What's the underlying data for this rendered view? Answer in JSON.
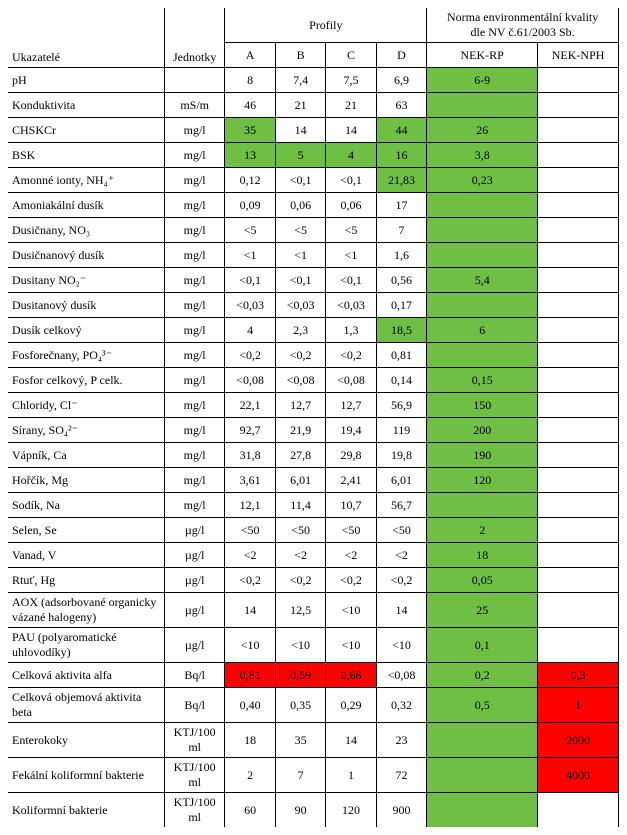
{
  "headers": {
    "ukazatele": "Ukazatelé",
    "jednotky": "Jednotky",
    "profily": "Profily",
    "norma_line1": "Norma environmentální kvality",
    "norma_line2": "dle NV č.61/2003 Sb.",
    "A": "A",
    "B": "B",
    "C": "C",
    "D": "D",
    "nekrp": "NEK-RP",
    "neknph": "NEK-NPH"
  },
  "rows": [
    {
      "name": "pH",
      "unit": "",
      "A": "8",
      "B": "7,4",
      "C": "7,5",
      "D": "6,9",
      "rp": "6-9",
      "nph": "",
      "hl": {
        "rp": "green"
      }
    },
    {
      "name": "Konduktivita",
      "unit": "mS/m",
      "A": "46",
      "B": "21",
      "C": "21",
      "D": "63",
      "rp": "",
      "nph": "",
      "hl": {
        "rp": "green"
      }
    },
    {
      "name": "CHSKCr",
      "unit": "mg/l",
      "A": "35",
      "B": "14",
      "C": "14",
      "D": "44",
      "rp": "26",
      "nph": "",
      "hl": {
        "A": "green",
        "D": "green",
        "rp": "green"
      }
    },
    {
      "name": "BSK",
      "unit": "mg/l",
      "A": "13",
      "B": "5",
      "C": "4",
      "D": "16",
      "rp": "3,8",
      "nph": "",
      "hl": {
        "A": "green",
        "B": "green",
        "C": "green",
        "D": "green",
        "rp": "green"
      }
    },
    {
      "name": "Amonné ionty, NH₄⁺",
      "unit": "mg/l",
      "A": "0,12",
      "B": "<0,1",
      "C": "<0,1",
      "D": "21,83",
      "rp": "0,23",
      "nph": "",
      "hl": {
        "D": "green",
        "rp": "green"
      }
    },
    {
      "name": "Amoniakální dusík",
      "unit": "mg/l",
      "A": "0,09",
      "B": "0,06",
      "C": "0,06",
      "D": "17",
      "rp": "",
      "nph": "",
      "hl": {
        "rp": "green"
      }
    },
    {
      "name": "Dusičnany, NO₃",
      "unit": "mg/l",
      "A": "<5",
      "B": "<5",
      "C": "<5",
      "D": "7",
      "rp": "",
      "nph": "",
      "hl": {
        "rp": "green"
      }
    },
    {
      "name": "Dusičnanový dusík",
      "unit": "mg/l",
      "A": "<1",
      "B": "<1",
      "C": "<1",
      "D": "1,6",
      "rp": "",
      "nph": "",
      "hl": {
        "rp": "green"
      }
    },
    {
      "name": "Dusitany NO₂⁻",
      "unit": "mg/l",
      "A": "<0,1",
      "B": "<0,1",
      "C": "<0,1",
      "D": "0,56",
      "rp": "5,4",
      "nph": "",
      "hl": {
        "rp": "green"
      }
    },
    {
      "name": "Dusitanový dusík",
      "unit": "mg/l",
      "A": "<0,03",
      "B": "<0,03",
      "C": "<0,03",
      "D": "0,17",
      "rp": "",
      "nph": "",
      "hl": {
        "rp": "green"
      }
    },
    {
      "name": "Dusík celkový",
      "unit": "mg/l",
      "A": "4",
      "B": "2,3",
      "C": "1,3",
      "D": "18,5",
      "rp": "6",
      "nph": "",
      "hl": {
        "D": "green",
        "rp": "green"
      }
    },
    {
      "name": "Fosforečnany, PO₄³⁻",
      "unit": "mg/l",
      "A": "<0,2",
      "B": "<0,2",
      "C": "<0,2",
      "D": "0,81",
      "rp": "",
      "nph": "",
      "hl": {
        "rp": "green"
      }
    },
    {
      "name": "Fosfor celkový, P celk.",
      "unit": "mg/l",
      "A": "<0,08",
      "B": "<0,08",
      "C": "<0,08",
      "D": "0,14",
      "rp": "0,15",
      "nph": "",
      "hl": {
        "rp": "green"
      }
    },
    {
      "name": "Chloridy, Cl⁻",
      "unit": "mg/l",
      "A": "22,1",
      "B": "12,7",
      "C": "12,7",
      "D": "56,9",
      "rp": "150",
      "nph": "",
      "hl": {
        "rp": "green"
      }
    },
    {
      "name": "Sírany, SO₄²⁻",
      "unit": "mg/l",
      "A": "92,7",
      "B": "21,9",
      "C": "19,4",
      "D": "119",
      "rp": "200",
      "nph": "",
      "hl": {
        "rp": "green"
      }
    },
    {
      "name": "Vápník, Ca",
      "unit": "mg/l",
      "A": "31,8",
      "B": "27,8",
      "C": "29,8",
      "D": "19,8",
      "rp": "190",
      "nph": "",
      "hl": {
        "rp": "green"
      }
    },
    {
      "name": "Hořčík, Mg",
      "unit": "mg/l",
      "A": "3,61",
      "B": "6,01",
      "C": "2,41",
      "D": "6,01",
      "rp": "120",
      "nph": "",
      "hl": {
        "rp": "green"
      }
    },
    {
      "name": "Sodík, Na",
      "unit": "mg/l",
      "A": "12,1",
      "B": "11,4",
      "C": "10,7",
      "D": "56,7",
      "rp": "",
      "nph": "",
      "hl": {
        "rp": "green"
      }
    },
    {
      "name": "Selen, Se",
      "unit": "µg/l",
      "A": "<50",
      "B": "<50",
      "C": "<50",
      "D": "<50",
      "rp": "2",
      "nph": "",
      "hl": {
        "rp": "green"
      }
    },
    {
      "name": "Vanad, V",
      "unit": "µg/l",
      "A": "<2",
      "B": "<2",
      "C": "<2",
      "D": "<2",
      "rp": "18",
      "nph": "",
      "hl": {
        "rp": "green"
      }
    },
    {
      "name": "Rtuť, Hg",
      "unit": "µg/l",
      "A": "<0,2",
      "B": "<0,2",
      "C": "<0,2",
      "D": "<0,2",
      "rp": "0,05",
      "nph": "",
      "hl": {
        "rp": "green"
      }
    },
    {
      "name": "AOX (adsorbované organicky vázané halogeny)",
      "unit": "µg/l",
      "A": "14",
      "B": "12,5",
      "C": "<10",
      "D": "14",
      "rp": "25",
      "nph": "",
      "hl": {
        "rp": "green"
      }
    },
    {
      "name": "PAU (polyaromatické uhlovodíky)",
      "unit": "µg/l",
      "A": "<10",
      "B": "<10",
      "C": "<10",
      "D": "<10",
      "rp": "0,1",
      "nph": "",
      "hl": {
        "rp": "green"
      }
    },
    {
      "name": "Celková aktivita alfa",
      "unit": "Bq/l",
      "A": "0,81",
      "B": "0,59",
      "C": "0,66",
      "D": "<0,08",
      "rp": "0,2",
      "nph": "0,3",
      "hl": {
        "A": "red",
        "B": "red",
        "C": "red",
        "rp": "green",
        "nph": "red"
      }
    },
    {
      "name": "Celková objemová aktivita beta",
      "unit": "Bq/l",
      "A": "0,40",
      "B": "0,35",
      "C": "0,29",
      "D": "0,32",
      "rp": "0,5",
      "nph": "1",
      "hl": {
        "rp": "green",
        "nph": "red"
      }
    },
    {
      "name": "Enterokoky",
      "unit": "KTJ/100 ml",
      "A": "18",
      "B": "35",
      "C": "14",
      "D": "23",
      "rp": "",
      "nph": "2000",
      "hl": {
        "rp": "green",
        "nph": "red"
      }
    },
    {
      "name": "Fekální koliformní bakterie",
      "unit": "KTJ/100 ml",
      "A": "2",
      "B": "7",
      "C": "1",
      "D": "72",
      "rp": "",
      "nph": "4000",
      "hl": {
        "rp": "green",
        "nph": "red"
      }
    },
    {
      "name": "Koliformní bakterie",
      "unit": "KTJ/100 ml",
      "A": "60",
      "B": "90",
      "C": "120",
      "D": "900",
      "rp": "",
      "nph": "",
      "hl": {
        "rp": "green"
      }
    }
  ]
}
